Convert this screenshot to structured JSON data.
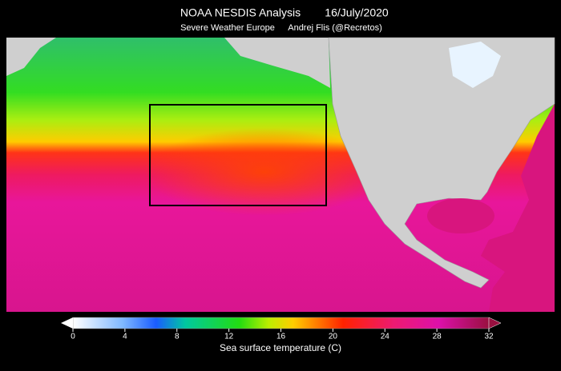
{
  "header": {
    "title": "NOAA NESDIS Analysis",
    "date": "16/July/2020",
    "source": "Severe Weather Europe",
    "author": "Andrej Flis (@Recretos)"
  },
  "colorbar": {
    "label": "Sea surface temperature (C)",
    "lim": [
      0,
      32
    ],
    "ticks": [
      0,
      4,
      8,
      12,
      16,
      20,
      24,
      28,
      32
    ]
  }
}
